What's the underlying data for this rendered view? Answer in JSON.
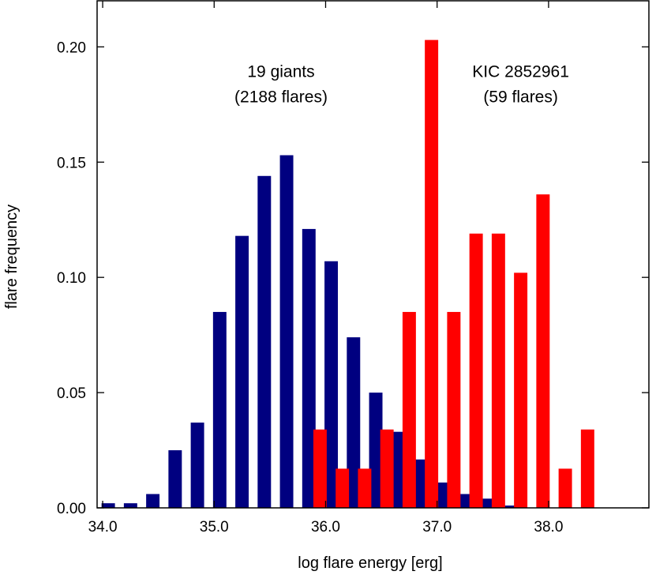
{
  "chart_data": {
    "type": "bar",
    "title": "",
    "xlabel": "log flare energy [erg]",
    "ylabel": "flare frequency",
    "xlim": [
      33.95,
      38.9
    ],
    "ylim": [
      0,
      0.22
    ],
    "xticks": [
      34.0,
      35.0,
      36.0,
      37.0,
      38.0
    ],
    "xtick_labels": [
      "34.0",
      "35.0",
      "36.0",
      "37.0",
      "38.0"
    ],
    "yticks": [
      0.0,
      0.05,
      0.1,
      0.15,
      0.2
    ],
    "ytick_labels": [
      "0.00",
      "0.05",
      "0.10",
      "0.15",
      "0.20"
    ],
    "bar_width": 0.12,
    "series": [
      {
        "name": "19 giants",
        "color": "#000080",
        "x": [
          34.05,
          34.25,
          34.45,
          34.65,
          34.85,
          35.05,
          35.25,
          35.45,
          35.65,
          35.85,
          36.05,
          36.25,
          36.45,
          36.65,
          36.85,
          37.05,
          37.25,
          37.45,
          37.65
        ],
        "values": [
          0.002,
          0.002,
          0.006,
          0.025,
          0.037,
          0.085,
          0.118,
          0.144,
          0.153,
          0.121,
          0.107,
          0.074,
          0.05,
          0.033,
          0.021,
          0.011,
          0.006,
          0.004,
          0.001
        ]
      },
      {
        "name": "KIC 2852961",
        "color": "#ff0000",
        "x": [
          35.95,
          36.15,
          36.35,
          36.55,
          36.75,
          36.95,
          37.15,
          37.35,
          37.55,
          37.75,
          37.95,
          38.15,
          38.35
        ],
        "values": [
          0.034,
          0.017,
          0.017,
          0.034,
          0.085,
          0.203,
          0.085,
          0.119,
          0.119,
          0.102,
          0.136,
          0.017,
          0.034
        ]
      }
    ],
    "annotations": [
      {
        "series": "19 giants",
        "line1": "19 giants",
        "line2": "(2188 flares)",
        "x": 35.6,
        "y": 0.187
      },
      {
        "series": "KIC 2852961",
        "line1": "KIC 2852961",
        "line2": "(59 flares)",
        "x": 37.75,
        "y": 0.187
      }
    ]
  }
}
